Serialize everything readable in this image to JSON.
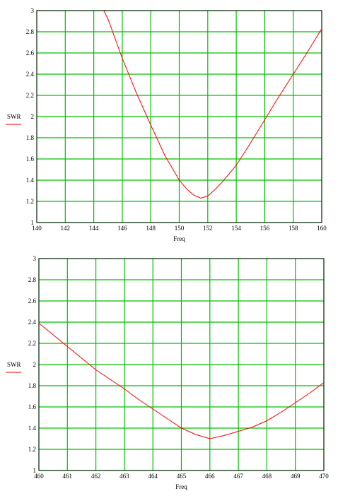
{
  "chart_data": [
    {
      "type": "line",
      "xlabel": "Freq",
      "x": [
        144.7,
        145,
        146,
        147,
        148,
        149,
        150,
        150.5,
        151,
        151.5,
        152,
        152.5,
        153,
        154,
        155,
        156,
        157,
        158,
        159,
        160
      ],
      "series": [
        {
          "name": "SWR",
          "color": "#ff0000",
          "values": [
            3.0,
            2.92,
            2.55,
            2.22,
            1.92,
            1.63,
            1.4,
            1.32,
            1.26,
            1.23,
            1.25,
            1.31,
            1.38,
            1.54,
            1.75,
            1.97,
            2.19,
            2.4,
            2.61,
            2.83
          ]
        }
      ],
      "xlim": [
        140,
        160
      ],
      "xticks": [
        140,
        142,
        144,
        146,
        148,
        150,
        152,
        154,
        156,
        158,
        160
      ],
      "ylim": [
        1,
        3
      ],
      "yticks": [
        1,
        1.2,
        1.4,
        1.6,
        1.8,
        2,
        2.2,
        2.4,
        2.6,
        2.8,
        3
      ],
      "grid": true,
      "grid_color": "#00c000"
    },
    {
      "type": "line",
      "xlabel": "Freq",
      "x": [
        460,
        460.5,
        461,
        461.5,
        462,
        462.5,
        463,
        463.5,
        464,
        464.5,
        465,
        465.5,
        466,
        466.5,
        467,
        467.5,
        468,
        468.5,
        469,
        469.5,
        470
      ],
      "series": [
        {
          "name": "SWR",
          "color": "#ff0000",
          "values": [
            2.39,
            2.28,
            2.17,
            2.06,
            1.95,
            1.86,
            1.77,
            1.67,
            1.58,
            1.49,
            1.4,
            1.34,
            1.3,
            1.33,
            1.37,
            1.41,
            1.47,
            1.55,
            1.64,
            1.73,
            1.83
          ]
        }
      ],
      "xlim": [
        460,
        470
      ],
      "xticks": [
        460,
        461,
        462,
        463,
        464,
        465,
        466,
        467,
        468,
        469,
        470
      ],
      "ylim": [
        1,
        3
      ],
      "yticks": [
        1,
        1.2,
        1.4,
        1.6,
        1.8,
        2,
        2.2,
        2.4,
        2.6,
        2.8,
        3
      ],
      "grid": true,
      "grid_color": "#00c000"
    }
  ]
}
